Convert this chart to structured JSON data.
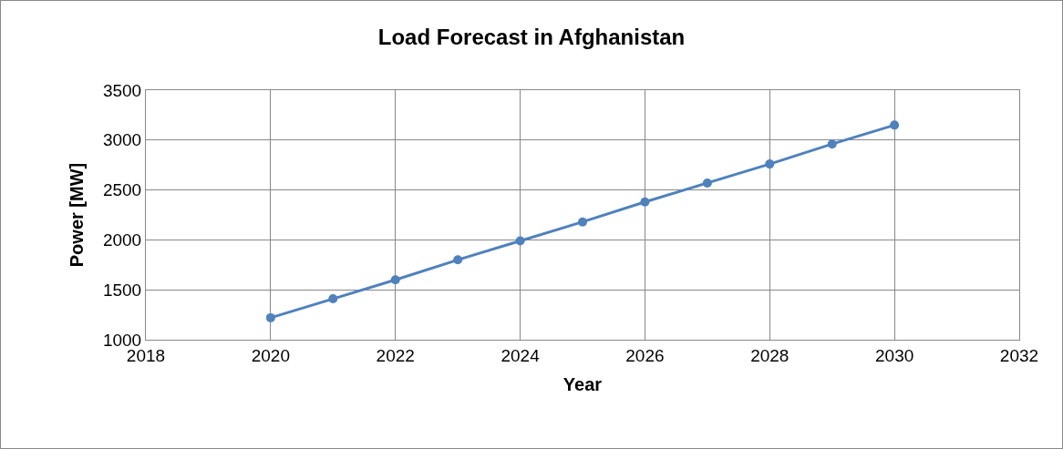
{
  "chart_data": {
    "type": "line",
    "title": "Load Forecast in Afghanistan",
    "xlabel": "Year",
    "ylabel": "Power [MW]",
    "x": [
      2020,
      2021,
      2022,
      2023,
      2024,
      2025,
      2026,
      2027,
      2028,
      2029,
      2030
    ],
    "series": [
      {
        "color": "#4f81bd",
        "values": [
          1220,
          1410,
          1600,
          1800,
          1990,
          2180,
          2380,
          2570,
          2760,
          2960,
          3150
        ]
      }
    ],
    "xlim": [
      2018,
      2032
    ],
    "xticks": [
      2018,
      2020,
      2022,
      2024,
      2026,
      2028,
      2030,
      2032
    ],
    "ylim": [
      1000,
      3500
    ],
    "yticks": [
      1000,
      1500,
      2000,
      2500,
      3000,
      3500
    ],
    "grid": true,
    "marker": "circle",
    "line_style": "solid"
  }
}
